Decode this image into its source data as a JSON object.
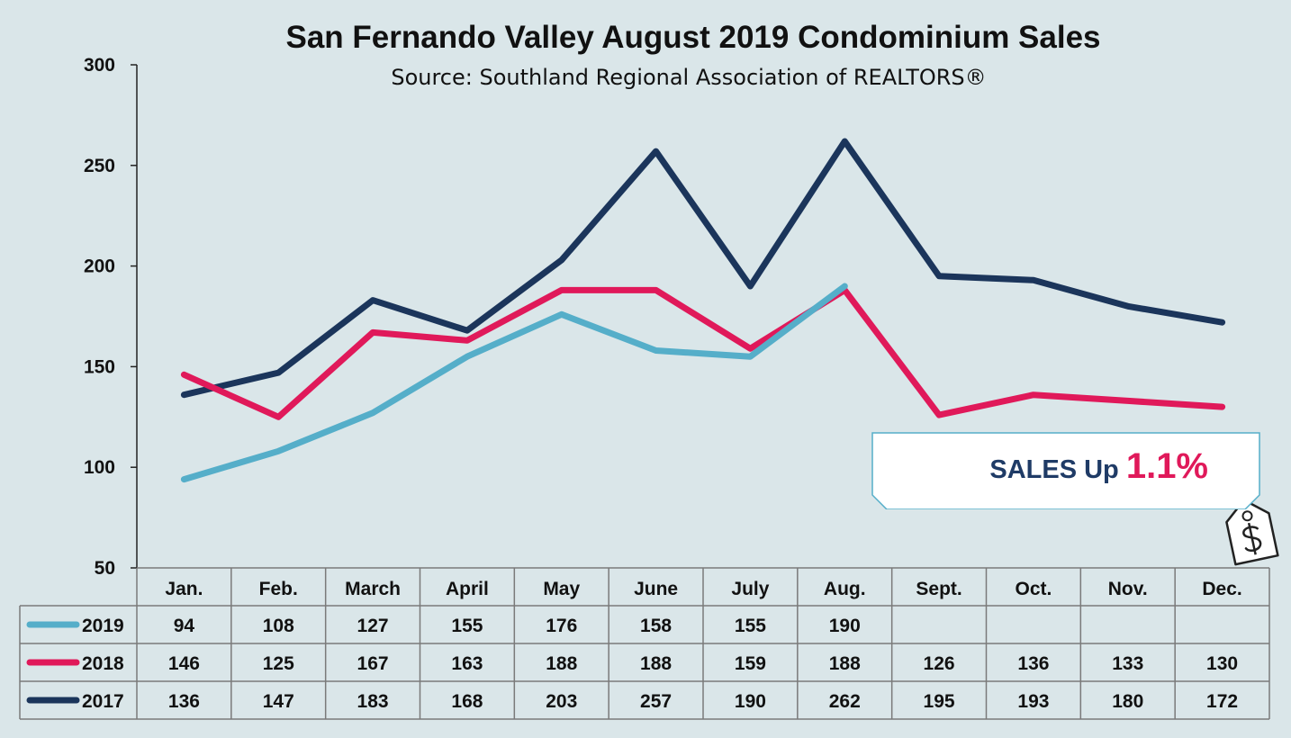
{
  "title": "San Fernando Valley August 2019 Condominium Sales",
  "subtitle": "Source: Southland Regional Association of REALTORS®",
  "callout": {
    "prefix": "SALES Up ",
    "percent": "1.1%"
  },
  "tag_icon": "dollar-price-tag-icon",
  "colors": {
    "2019": "#55aec9",
    "2018": "#e0195a",
    "2017": "#1b355b",
    "background": "#dae6e9"
  },
  "chart_data": {
    "type": "line",
    "title": "San Fernando Valley August 2019 Condominium Sales",
    "subtitle": "Source: Southland Regional Association of REALTORS®",
    "categories": [
      "Jan.",
      "Feb.",
      "March",
      "April",
      "May",
      "June",
      "July",
      "Aug.",
      "Sept.",
      "Oct.",
      "Nov.",
      "Dec."
    ],
    "ylim": [
      50,
      300
    ],
    "yticks": [
      50,
      100,
      150,
      200,
      250,
      300
    ],
    "grid": false,
    "legend": "data-table-below",
    "series": [
      {
        "name": "2019",
        "color": "#55aec9",
        "values": [
          94,
          108,
          127,
          155,
          176,
          158,
          155,
          190,
          null,
          null,
          null,
          null
        ]
      },
      {
        "name": "2018",
        "color": "#e0195a",
        "values": [
          146,
          125,
          167,
          163,
          188,
          188,
          159,
          188,
          126,
          136,
          133,
          130
        ]
      },
      {
        "name": "2017",
        "color": "#1b355b",
        "values": [
          136,
          147,
          183,
          168,
          203,
          257,
          190,
          262,
          195,
          193,
          180,
          172
        ]
      }
    ]
  }
}
